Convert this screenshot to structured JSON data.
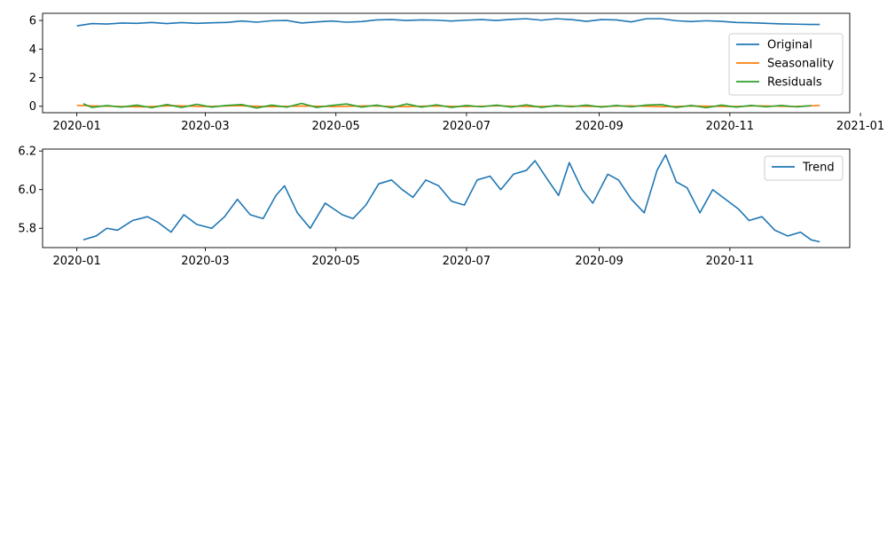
{
  "chart_data": [
    {
      "type": "line",
      "xaxis": "date",
      "xlim": [
        "2019-12-16",
        "2020-12-27"
      ],
      "ylim": [
        -0.45,
        6.5
      ],
      "xticks": [
        "2020-01-01",
        "2020-03-01",
        "2020-05-01",
        "2020-07-01",
        "2020-09-01",
        "2020-11-01",
        "2021-01-01"
      ],
      "xtick_labels": [
        "2020-01",
        "2020-03",
        "2020-05",
        "2020-07",
        "2020-09",
        "2020-11",
        "2021-01"
      ],
      "yticks": [
        0,
        2,
        4,
        6
      ],
      "ytick_labels": [
        "0",
        "2",
        "4",
        "6"
      ],
      "legend_loc": "right",
      "series": [
        {
          "name": "Original",
          "color": "#1f77b4",
          "points": [
            [
              "2020-01-01",
              5.62
            ],
            [
              "2020-01-08",
              5.78
            ],
            [
              "2020-01-15",
              5.75
            ],
            [
              "2020-01-22",
              5.82
            ],
            [
              "2020-01-29",
              5.8
            ],
            [
              "2020-02-05",
              5.86
            ],
            [
              "2020-02-12",
              5.78
            ],
            [
              "2020-02-19",
              5.85
            ],
            [
              "2020-02-26",
              5.8
            ],
            [
              "2020-03-04",
              5.84
            ],
            [
              "2020-03-11",
              5.86
            ],
            [
              "2020-03-18",
              5.96
            ],
            [
              "2020-03-25",
              5.88
            ],
            [
              "2020-04-01",
              5.98
            ],
            [
              "2020-04-08",
              6.0
            ],
            [
              "2020-04-15",
              5.82
            ],
            [
              "2020-04-22",
              5.9
            ],
            [
              "2020-04-29",
              5.96
            ],
            [
              "2020-05-06",
              5.88
            ],
            [
              "2020-05-13",
              5.92
            ],
            [
              "2020-05-20",
              6.04
            ],
            [
              "2020-05-27",
              6.06
            ],
            [
              "2020-06-03",
              6.0
            ],
            [
              "2020-06-10",
              6.04
            ],
            [
              "2020-06-17",
              6.02
            ],
            [
              "2020-06-24",
              5.96
            ],
            [
              "2020-07-01",
              6.02
            ],
            [
              "2020-07-08",
              6.06
            ],
            [
              "2020-07-15",
              6.0
            ],
            [
              "2020-07-22",
              6.08
            ],
            [
              "2020-07-29",
              6.12
            ],
            [
              "2020-08-05",
              6.02
            ],
            [
              "2020-08-12",
              6.12
            ],
            [
              "2020-08-19",
              6.06
            ],
            [
              "2020-08-26",
              5.94
            ],
            [
              "2020-09-02",
              6.06
            ],
            [
              "2020-09-09",
              6.04
            ],
            [
              "2020-09-16",
              5.9
            ],
            [
              "2020-09-23",
              6.12
            ],
            [
              "2020-09-30",
              6.12
            ],
            [
              "2020-10-07",
              5.98
            ],
            [
              "2020-10-14",
              5.92
            ],
            [
              "2020-10-21",
              5.98
            ],
            [
              "2020-10-28",
              5.94
            ],
            [
              "2020-11-04",
              5.86
            ],
            [
              "2020-11-11",
              5.84
            ],
            [
              "2020-11-18",
              5.8
            ],
            [
              "2020-11-25",
              5.76
            ],
            [
              "2020-12-02",
              5.74
            ],
            [
              "2020-12-09",
              5.72
            ],
            [
              "2020-12-13",
              5.72
            ]
          ]
        },
        {
          "name": "Seasonality",
          "color": "#ff7f0e",
          "points": [
            [
              "2020-01-01",
              0.06
            ],
            [
              "2020-01-15",
              0.0
            ],
            [
              "2020-02-01",
              -0.04
            ],
            [
              "2020-02-15",
              0.04
            ],
            [
              "2020-03-01",
              -0.02
            ],
            [
              "2020-03-15",
              0.04
            ],
            [
              "2020-04-01",
              -0.03
            ],
            [
              "2020-04-15",
              0.02
            ],
            [
              "2020-05-01",
              -0.02
            ],
            [
              "2020-05-15",
              0.03
            ],
            [
              "2020-06-01",
              -0.03
            ],
            [
              "2020-06-15",
              0.02
            ],
            [
              "2020-07-01",
              -0.02
            ],
            [
              "2020-07-15",
              0.03
            ],
            [
              "2020-08-01",
              -0.03
            ],
            [
              "2020-08-15",
              0.02
            ],
            [
              "2020-09-01",
              -0.02
            ],
            [
              "2020-09-15",
              0.03
            ],
            [
              "2020-10-01",
              -0.03
            ],
            [
              "2020-10-15",
              0.02
            ],
            [
              "2020-11-01",
              -0.02
            ],
            [
              "2020-11-15",
              0.03
            ],
            [
              "2020-12-01",
              -0.02
            ],
            [
              "2020-12-13",
              0.06
            ]
          ]
        },
        {
          "name": "Residuals",
          "color": "#2ca02c",
          "points": [
            [
              "2020-01-04",
              0.18
            ],
            [
              "2020-01-08",
              -0.08
            ],
            [
              "2020-01-15",
              0.05
            ],
            [
              "2020-01-22",
              -0.06
            ],
            [
              "2020-01-29",
              0.08
            ],
            [
              "2020-02-05",
              -0.1
            ],
            [
              "2020-02-12",
              0.12
            ],
            [
              "2020-02-19",
              -0.08
            ],
            [
              "2020-02-26",
              0.14
            ],
            [
              "2020-03-04",
              -0.06
            ],
            [
              "2020-03-11",
              0.06
            ],
            [
              "2020-03-18",
              0.12
            ],
            [
              "2020-03-25",
              -0.12
            ],
            [
              "2020-04-01",
              0.08
            ],
            [
              "2020-04-08",
              -0.06
            ],
            [
              "2020-04-15",
              0.2
            ],
            [
              "2020-04-22",
              -0.08
            ],
            [
              "2020-04-29",
              0.06
            ],
            [
              "2020-05-06",
              0.16
            ],
            [
              "2020-05-13",
              -0.06
            ],
            [
              "2020-05-20",
              0.08
            ],
            [
              "2020-05-27",
              -0.1
            ],
            [
              "2020-06-03",
              0.16
            ],
            [
              "2020-06-10",
              -0.06
            ],
            [
              "2020-06-17",
              0.1
            ],
            [
              "2020-06-24",
              -0.08
            ],
            [
              "2020-07-01",
              0.06
            ],
            [
              "2020-07-08",
              -0.04
            ],
            [
              "2020-07-15",
              0.08
            ],
            [
              "2020-07-22",
              -0.06
            ],
            [
              "2020-07-29",
              0.1
            ],
            [
              "2020-08-05",
              -0.08
            ],
            [
              "2020-08-12",
              0.06
            ],
            [
              "2020-08-19",
              -0.04
            ],
            [
              "2020-08-26",
              0.08
            ],
            [
              "2020-09-02",
              -0.06
            ],
            [
              "2020-09-09",
              0.06
            ],
            [
              "2020-09-16",
              -0.04
            ],
            [
              "2020-09-23",
              0.08
            ],
            [
              "2020-09-30",
              0.12
            ],
            [
              "2020-10-07",
              -0.08
            ],
            [
              "2020-10-14",
              0.06
            ],
            [
              "2020-10-21",
              -0.1
            ],
            [
              "2020-10-28",
              0.08
            ],
            [
              "2020-11-04",
              -0.06
            ],
            [
              "2020-11-11",
              0.06
            ],
            [
              "2020-11-18",
              -0.04
            ],
            [
              "2020-11-25",
              0.06
            ],
            [
              "2020-12-02",
              -0.04
            ],
            [
              "2020-12-09",
              0.04
            ]
          ]
        }
      ]
    },
    {
      "type": "line",
      "xaxis": "date",
      "xlim": [
        "2019-12-16",
        "2020-12-27"
      ],
      "ylim": [
        5.7,
        6.21
      ],
      "xticks": [
        "2020-01-01",
        "2020-03-01",
        "2020-05-01",
        "2020-07-01",
        "2020-09-01",
        "2020-11-01"
      ],
      "xtick_labels": [
        "2020-01",
        "2020-03",
        "2020-05",
        "2020-07",
        "2020-09",
        "2020-11"
      ],
      "yticks": [
        5.8,
        6.0,
        6.2
      ],
      "ytick_labels": [
        "5.8",
        "6.0",
        "6.2"
      ],
      "legend_loc": "top-right",
      "series": [
        {
          "name": "Trend",
          "color": "#1f77b4",
          "points": [
            [
              "2020-01-04",
              5.74
            ],
            [
              "2020-01-10",
              5.76
            ],
            [
              "2020-01-15",
              5.8
            ],
            [
              "2020-01-20",
              5.79
            ],
            [
              "2020-01-27",
              5.84
            ],
            [
              "2020-02-03",
              5.86
            ],
            [
              "2020-02-08",
              5.83
            ],
            [
              "2020-02-14",
              5.78
            ],
            [
              "2020-02-20",
              5.87
            ],
            [
              "2020-02-26",
              5.82
            ],
            [
              "2020-03-04",
              5.8
            ],
            [
              "2020-03-10",
              5.86
            ],
            [
              "2020-03-16",
              5.95
            ],
            [
              "2020-03-22",
              5.87
            ],
            [
              "2020-03-28",
              5.85
            ],
            [
              "2020-04-03",
              5.97
            ],
            [
              "2020-04-07",
              6.02
            ],
            [
              "2020-04-13",
              5.88
            ],
            [
              "2020-04-19",
              5.8
            ],
            [
              "2020-04-26",
              5.93
            ],
            [
              "2020-05-04",
              5.87
            ],
            [
              "2020-05-09",
              5.85
            ],
            [
              "2020-05-15",
              5.92
            ],
            [
              "2020-05-21",
              6.03
            ],
            [
              "2020-05-27",
              6.05
            ],
            [
              "2020-06-01",
              6.0
            ],
            [
              "2020-06-06",
              5.96
            ],
            [
              "2020-06-12",
              6.05
            ],
            [
              "2020-06-18",
              6.02
            ],
            [
              "2020-06-24",
              5.94
            ],
            [
              "2020-06-30",
              5.92
            ],
            [
              "2020-07-06",
              6.05
            ],
            [
              "2020-07-12",
              6.07
            ],
            [
              "2020-07-17",
              6.0
            ],
            [
              "2020-07-23",
              6.08
            ],
            [
              "2020-07-29",
              6.1
            ],
            [
              "2020-08-02",
              6.15
            ],
            [
              "2020-08-08",
              6.05
            ],
            [
              "2020-08-13",
              5.97
            ],
            [
              "2020-08-18",
              6.14
            ],
            [
              "2020-08-24",
              6.0
            ],
            [
              "2020-08-29",
              5.93
            ],
            [
              "2020-09-05",
              6.08
            ],
            [
              "2020-09-10",
              6.05
            ],
            [
              "2020-09-16",
              5.95
            ],
            [
              "2020-09-22",
              5.88
            ],
            [
              "2020-09-28",
              6.1
            ],
            [
              "2020-10-02",
              6.18
            ],
            [
              "2020-10-07",
              6.04
            ],
            [
              "2020-10-12",
              6.01
            ],
            [
              "2020-10-18",
              5.88
            ],
            [
              "2020-10-24",
              6.0
            ],
            [
              "2020-10-30",
              5.95
            ],
            [
              "2020-11-05",
              5.9
            ],
            [
              "2020-11-10",
              5.84
            ],
            [
              "2020-11-16",
              5.86
            ],
            [
              "2020-11-22",
              5.79
            ],
            [
              "2020-11-28",
              5.76
            ],
            [
              "2020-12-04",
              5.78
            ],
            [
              "2020-12-09",
              5.74
            ],
            [
              "2020-12-13",
              5.73
            ]
          ]
        }
      ]
    }
  ]
}
